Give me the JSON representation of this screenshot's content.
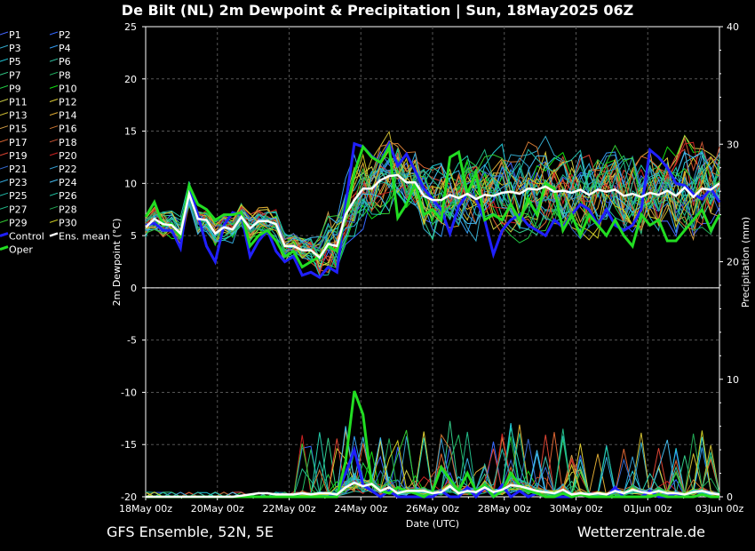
{
  "title": "De Bilt  (NL)  2m Dewpoint & Precipitation | Sun, 18May2025 06Z",
  "footer": {
    "source": "GFS Ensemble, 52N, 5E",
    "site": "Wetterzentrale.de"
  },
  "colors": {
    "background": "#000000",
    "grid": "#555555",
    "control": "#2020ff",
    "oper": "#22dd22",
    "ens_mean": "#ffffff",
    "members": [
      "#4466ff",
      "#3366ff",
      "#33aacc",
      "#3399ee",
      "#22ccdd",
      "#33ccaa",
      "#33cc88",
      "#22bb66",
      "#22cc44",
      "#11dd11",
      "#cccc44",
      "#ddcc33",
      "#ccbb33",
      "#ddaa33",
      "#cc9944",
      "#cc7733",
      "#dd6633",
      "#cc5533",
      "#dd4433",
      "#cc2222",
      "#3366cc",
      "#3399cc",
      "#33aadd",
      "#44bbee",
      "#22bbaa",
      "#22ccaa",
      "#22bb88",
      "#22aa55",
      "#33cc33",
      "#cccc22"
    ]
  },
  "chart_data": {
    "type": "line",
    "title": "De Bilt  (NL)  2m Dewpoint & Precipitation | Sun, 18May2025 06Z",
    "xlabel": "Date (UTC)",
    "ylabel_left": "2m Dewpoint (°C)",
    "ylabel_right": "Precipitation (mm)",
    "x_range": [
      "18May 00z",
      "03Jun 00z"
    ],
    "x_ticks": [
      "18May 00z",
      "20May 00z",
      "22May 00z",
      "24May 00z",
      "26May 00z",
      "28May 00z",
      "30May 00z",
      "01Jun 00z",
      "03Jun 00z"
    ],
    "ylim_left": [
      -20,
      25
    ],
    "y_ticks_left": [
      25,
      20,
      15,
      10,
      5,
      0,
      -5,
      -10,
      -15,
      -20
    ],
    "ylim_right": [
      0,
      40
    ],
    "y_ticks_right": [
      40,
      30,
      20,
      10,
      0
    ],
    "grid": true,
    "legend": [
      "P1",
      "P2",
      "P3",
      "P4",
      "P5",
      "P6",
      "P7",
      "P8",
      "P9",
      "P10",
      "P11",
      "P12",
      "P13",
      "P14",
      "P15",
      "P16",
      "P17",
      "P18",
      "P19",
      "P20",
      "P21",
      "P22",
      "P23",
      "P24",
      "P25",
      "P26",
      "P27",
      "P28",
      "P29",
      "P30",
      "Control",
      "Ens. mean",
      "Oper"
    ],
    "legend_position": "left",
    "time_step_hours": 6,
    "dewpoint": {
      "ens_mean": [
        5.8,
        6.6,
        6.1,
        6.0,
        5.2,
        9.0,
        6.6,
        6.5,
        5.2,
        5.8,
        5.6,
        6.8,
        5.7,
        6.4,
        6.4,
        6.1,
        4.0,
        4.0,
        3.6,
        3.6,
        2.9,
        4.2,
        4.0,
        7.0,
        8.4,
        9.5,
        9.5,
        10.3,
        10.7,
        10.8,
        10.1,
        10.1,
        8.8,
        8.4,
        8.4,
        8.9,
        8.6,
        9.0,
        8.5,
        8.9,
        8.8,
        9.1,
        9.2,
        9.0,
        9.5,
        9.4,
        9.7,
        9.2,
        9.3,
        9.1,
        9.4,
        8.9,
        9.4,
        9.2,
        9.4,
        8.8,
        9.0,
        8.7,
        9.1,
        8.9,
        9.3,
        8.8,
        9.6,
        8.7,
        9.5,
        9.4,
        10.0
      ],
      "control": [
        6.0,
        6.2,
        5.5,
        5.5,
        3.8,
        9.7,
        7.0,
        4.0,
        2.5,
        6.0,
        7.2,
        7.0,
        3.0,
        4.5,
        5.5,
        3.5,
        2.5,
        3.0,
        1.2,
        1.5,
        1.0,
        2.0,
        1.5,
        8.0,
        13.8,
        13.5,
        12.6,
        12.0,
        13.8,
        11.7,
        12.8,
        11.2,
        9.5,
        8.5,
        7.5,
        5.2,
        7.8,
        9.0,
        8.5,
        6.5,
        3.2,
        5.5,
        6.5,
        7.0,
        6.0,
        5.5,
        5.0,
        6.5,
        5.8,
        7.0,
        8.0,
        7.5,
        6.0,
        7.5,
        6.0,
        5.5,
        6.0,
        7.5,
        13.2,
        12.5,
        11.5,
        10.0,
        9.8,
        9.0,
        8.5,
        9.5,
        8.2
      ],
      "oper": [
        6.8,
        8.2,
        6.0,
        6.1,
        5.0,
        9.8,
        8.0,
        7.5,
        6.5,
        7.0,
        7.0,
        7.2,
        4.0,
        5.0,
        5.5,
        4.5,
        3.0,
        3.5,
        2.0,
        2.5,
        3.0,
        4.0,
        3.5,
        7.0,
        11.0,
        13.5,
        12.5,
        12.0,
        13.5,
        6.7,
        8.0,
        10.0,
        7.0,
        7.5,
        6.5,
        12.5,
        13.0,
        9.0,
        11.0,
        6.5,
        7.0,
        6.5,
        8.0,
        6.5,
        8.5,
        7.0,
        10.0,
        9.5,
        5.5,
        7.0,
        5.0,
        7.0,
        6.0,
        5.0,
        6.5,
        5.0,
        4.0,
        7.0,
        6.0,
        6.5,
        4.5,
        4.5,
        5.5,
        6.5,
        7.5,
        5.5,
        7.0
      ]
    },
    "precipitation": {
      "ens_mean": [
        0,
        0,
        0,
        0,
        0,
        0,
        0,
        0,
        0,
        0,
        0,
        0.1,
        0.2,
        0.3,
        0.3,
        0.2,
        0.2,
        0.2,
        0.3,
        0.2,
        0.3,
        0.3,
        0.2,
        0.8,
        1.2,
        0.9,
        1.1,
        0.5,
        0.8,
        0.3,
        0.5,
        0.5,
        0.5,
        0.3,
        0.4,
        0.9,
        0.3,
        0.5,
        0.4,
        0.8,
        0.4,
        0.6,
        1.0,
        0.9,
        0.7,
        0.5,
        0.4,
        0.3,
        0.6,
        0.2,
        0.3,
        0.2,
        0.3,
        0.2,
        0.5,
        0.3,
        0.6,
        0.4,
        0.3,
        0.5,
        0.3,
        0.3,
        0.2,
        0.4,
        0.5,
        0.3,
        0.2
      ],
      "control": [
        0,
        0,
        0,
        0,
        0,
        0,
        0,
        0,
        0,
        0,
        0,
        0,
        0,
        0,
        0,
        0,
        0,
        0,
        0,
        0,
        0,
        0,
        0.2,
        2.0,
        4.0,
        1.0,
        0.5,
        0,
        0.5,
        0,
        0,
        0,
        0,
        0,
        0.5,
        0,
        0,
        0.8,
        0,
        0.8,
        0,
        1.0,
        0,
        0.5,
        0,
        0.3,
        0,
        0,
        0,
        0,
        0.2,
        0,
        0,
        0,
        0.8,
        0,
        0,
        0,
        0.5,
        0,
        0,
        0.3,
        0,
        0,
        0.2,
        0,
        0
      ],
      "oper": [
        0,
        0,
        0,
        0,
        0,
        0,
        0,
        0,
        0,
        0,
        0,
        0,
        0,
        0,
        0,
        0,
        0,
        0,
        0,
        0,
        0,
        0,
        0,
        3.0,
        9.0,
        7.0,
        1.0,
        0.5,
        0.3,
        0.8,
        0.5,
        0.3,
        0,
        0.5,
        2.5,
        1.5,
        0.5,
        2.0,
        0.5,
        1.0,
        0,
        0.5,
        2.0,
        1.0,
        0.5,
        0.3,
        0,
        0,
        0.3,
        0,
        0.2,
        0,
        0,
        0,
        0,
        0,
        0,
        0,
        0,
        0.2,
        0,
        0,
        0,
        0,
        0.2,
        0,
        0
      ]
    }
  }
}
